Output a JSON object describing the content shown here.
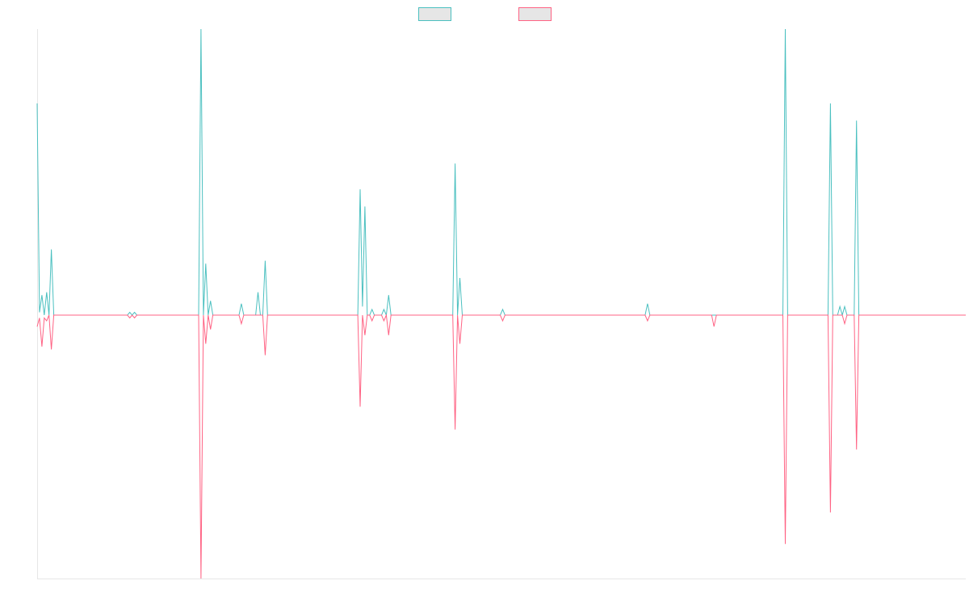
{
  "chart_data": {
    "type": "line",
    "title": "",
    "xlabel": "",
    "ylabel": "",
    "grid": false,
    "legend_position": "top-center",
    "ylim": [
      -1.0,
      1.0
    ],
    "series": [
      {
        "color": "#4bc0c0",
        "fill": "#e6e6e6",
        "values": [
          0.74,
          0.01,
          0.07,
          0.0,
          0.08,
          0.0,
          0.23,
          0.0,
          0.0,
          0.0,
          0.0,
          0.0,
          0.0,
          0.0,
          0.0,
          0.0,
          0.0,
          0.0,
          0.0,
          0.0,
          0.0,
          0.0,
          0.0,
          0.0,
          0.0,
          0.0,
          0.0,
          0.0,
          0.0,
          0.0,
          0.0,
          0.0,
          0.0,
          0.0,
          0.0,
          0.0,
          0.0,
          0.0,
          0.0,
          0.01,
          0.0,
          0.01,
          0.0,
          0.0,
          0.0,
          0.0,
          0.0,
          0.0,
          0.0,
          0.0,
          0.0,
          0.0,
          0.0,
          0.0,
          0.0,
          0.0,
          0.0,
          0.0,
          0.0,
          0.0,
          0.0,
          0.0,
          0.0,
          0.0,
          0.0,
          0.0,
          0.0,
          0.0,
          0.0,
          1.04,
          0.0,
          0.18,
          0.0,
          0.05,
          0.0,
          0.0,
          0.0,
          0.0,
          0.0,
          0.0,
          0.0,
          0.0,
          0.0,
          0.0,
          0.0,
          0.0,
          0.04,
          0.0,
          0.0,
          0.0,
          0.0,
          0.0,
          0.0,
          0.08,
          0.0,
          0.0,
          0.19,
          0.0,
          0.0,
          0.0,
          0.0,
          0.0,
          0.0,
          0.0,
          0.0,
          0.0,
          0.0,
          0.0,
          0.0,
          0.0,
          0.0,
          0.0,
          0.0,
          0.0,
          0.0,
          0.0,
          0.0,
          0.0,
          0.0,
          0.0,
          0.0,
          0.0,
          0.0,
          0.0,
          0.0,
          0.0,
          0.0,
          0.0,
          0.0,
          0.0,
          0.0,
          0.0,
          0.0,
          0.0,
          0.0,
          0.0,
          0.44,
          0.03,
          0.38,
          0.0,
          0.0,
          0.02,
          0.0,
          0.0,
          0.0,
          0.0,
          0.02,
          0.0,
          0.07,
          0.0,
          0.0,
          0.0,
          0.0,
          0.0,
          0.0,
          0.0,
          0.0,
          0.0,
          0.0,
          0.0,
          0.0,
          0.0,
          0.0,
          0.0,
          0.0,
          0.0,
          0.0,
          0.0,
          0.0,
          0.0,
          0.0,
          0.0,
          0.0,
          0.0,
          0.0,
          0.0,
          0.53,
          0.0,
          0.13,
          0.0,
          0.0,
          0.0,
          0.0,
          0.0,
          0.0,
          0.0,
          0.0,
          0.0,
          0.0,
          0.0,
          0.0,
          0.0,
          0.0,
          0.0,
          0.0,
          0.0,
          0.02,
          0.0,
          0.0,
          0.0,
          0.0,
          0.0,
          0.0,
          0.0,
          0.0,
          0.0,
          0.0,
          0.0,
          0.0,
          0.0,
          0.0,
          0.0,
          0.0,
          0.0,
          0.0,
          0.0,
          0.0,
          0.0,
          0.0,
          0.0,
          0.0,
          0.0,
          0.0,
          0.0,
          0.0,
          0.0,
          0.0,
          0.0,
          0.0,
          0.0,
          0.0,
          0.0,
          0.0,
          0.0,
          0.0,
          0.0,
          0.0,
          0.0,
          0.0,
          0.0,
          0.0,
          0.0,
          0.0,
          0.0,
          0.0,
          0.0,
          0.0,
          0.0,
          0.0,
          0.0,
          0.0,
          0.0,
          0.0,
          0.0,
          0.0,
          0.0,
          0.0,
          0.04,
          0.0,
          0.0,
          0.0,
          0.0,
          0.0,
          0.0,
          0.0,
          0.0,
          0.0,
          0.0,
          0.0,
          0.0,
          0.0,
          0.0,
          0.0,
          0.0,
          0.0,
          0.0,
          0.0,
          0.0,
          0.0,
          0.0,
          0.0,
          0.0,
          0.0,
          0.0,
          0.0,
          0.0,
          0.0,
          0.0,
          0.0,
          0.0,
          0.0,
          0.0,
          0.0,
          0.0,
          0.0,
          0.0,
          0.0,
          0.0,
          0.0,
          0.0,
          0.0,
          0.0,
          0.0,
          0.0,
          0.0,
          0.0,
          0.0,
          0.0,
          0.0,
          0.0,
          0.0,
          0.0,
          0.0,
          0.0,
          0.0,
          1.0,
          0.0,
          0.0,
          0.0,
          0.0,
          0.0,
          0.0,
          0.0,
          0.0,
          0.0,
          0.0,
          0.0,
          0.0,
          0.0,
          0.0,
          0.0,
          0.0,
          0.0,
          0.0,
          0.74,
          0.0,
          0.0,
          0.0,
          0.03,
          0.0,
          0.03,
          0.0,
          0.0,
          0.0,
          0.0,
          0.68,
          0.0,
          0.0,
          0.0,
          0.0,
          0.0,
          0.0,
          0.0,
          0.0,
          0.0,
          0.0,
          0.0,
          0.0,
          0.0,
          0.0,
          0.0,
          0.0,
          0.0,
          0.0,
          0.0,
          0.0,
          0.0,
          0.0,
          0.0,
          0.0,
          0.0,
          0.0,
          0.0,
          0.0,
          0.0,
          0.0,
          0.0,
          0.0,
          0.0,
          0.0,
          0.0,
          0.0,
          0.0,
          0.0,
          0.0,
          0.0,
          0.0,
          0.0,
          0.0,
          0.0,
          0.0,
          0.0
        ]
      },
      {
        "color": "#ff6384",
        "fill": "#e6e6e6",
        "values": [
          -0.04,
          -0.01,
          -0.11,
          -0.01,
          -0.02,
          0.0,
          -0.12,
          0.0,
          0.0,
          0.0,
          0.0,
          0.0,
          0.0,
          0.0,
          0.0,
          0.0,
          0.0,
          0.0,
          0.0,
          0.0,
          0.0,
          0.0,
          0.0,
          0.0,
          0.0,
          0.0,
          0.0,
          0.0,
          0.0,
          0.0,
          0.0,
          0.0,
          0.0,
          0.0,
          0.0,
          0.0,
          0.0,
          0.0,
          0.0,
          -0.01,
          0.0,
          -0.01,
          0.0,
          0.0,
          0.0,
          0.0,
          0.0,
          0.0,
          0.0,
          0.0,
          0.0,
          0.0,
          0.0,
          0.0,
          0.0,
          0.0,
          0.0,
          0.0,
          0.0,
          0.0,
          0.0,
          0.0,
          0.0,
          0.0,
          0.0,
          0.0,
          0.0,
          0.0,
          0.0,
          -0.96,
          0.0,
          -0.1,
          0.0,
          -0.05,
          0.0,
          0.0,
          0.0,
          0.0,
          0.0,
          0.0,
          0.0,
          0.0,
          0.0,
          0.0,
          0.0,
          0.0,
          -0.03,
          0.0,
          0.0,
          0.0,
          0.0,
          0.0,
          0.0,
          0.0,
          0.0,
          0.0,
          -0.14,
          0.0,
          0.0,
          0.0,
          0.0,
          0.0,
          0.0,
          0.0,
          0.0,
          0.0,
          0.0,
          0.0,
          0.0,
          0.0,
          0.0,
          0.0,
          0.0,
          0.0,
          0.0,
          0.0,
          0.0,
          0.0,
          0.0,
          0.0,
          0.0,
          0.0,
          0.0,
          0.0,
          0.0,
          0.0,
          0.0,
          0.0,
          0.0,
          0.0,
          0.0,
          0.0,
          0.0,
          0.0,
          0.0,
          0.0,
          -0.32,
          0.0,
          -0.07,
          0.0,
          0.0,
          -0.02,
          0.0,
          0.0,
          0.0,
          0.0,
          -0.02,
          0.0,
          -0.07,
          0.0,
          0.0,
          0.0,
          0.0,
          0.0,
          0.0,
          0.0,
          0.0,
          0.0,
          0.0,
          0.0,
          0.0,
          0.0,
          0.0,
          0.0,
          0.0,
          0.0,
          0.0,
          0.0,
          0.0,
          0.0,
          0.0,
          0.0,
          0.0,
          0.0,
          0.0,
          0.0,
          -0.4,
          0.0,
          -0.1,
          0.0,
          0.0,
          0.0,
          0.0,
          0.0,
          0.0,
          0.0,
          0.0,
          0.0,
          0.0,
          0.0,
          0.0,
          0.0,
          0.0,
          0.0,
          0.0,
          0.0,
          -0.02,
          0.0,
          0.0,
          0.0,
          0.0,
          0.0,
          0.0,
          0.0,
          0.0,
          0.0,
          0.0,
          0.0,
          0.0,
          0.0,
          0.0,
          0.0,
          0.0,
          0.0,
          0.0,
          0.0,
          0.0,
          0.0,
          0.0,
          0.0,
          0.0,
          0.0,
          0.0,
          0.0,
          0.0,
          0.0,
          0.0,
          0.0,
          0.0,
          0.0,
          0.0,
          0.0,
          0.0,
          0.0,
          0.0,
          0.0,
          0.0,
          0.0,
          0.0,
          0.0,
          0.0,
          0.0,
          0.0,
          0.0,
          0.0,
          0.0,
          0.0,
          0.0,
          0.0,
          0.0,
          0.0,
          0.0,
          0.0,
          0.0,
          0.0,
          0.0,
          0.0,
          -0.02,
          0.0,
          0.0,
          0.0,
          0.0,
          0.0,
          0.0,
          0.0,
          0.0,
          0.0,
          0.0,
          0.0,
          0.0,
          0.0,
          0.0,
          0.0,
          0.0,
          0.0,
          0.0,
          0.0,
          0.0,
          0.0,
          0.0,
          0.0,
          0.0,
          0.0,
          0.0,
          0.0,
          -0.04,
          0.0,
          0.0,
          0.0,
          0.0,
          0.0,
          0.0,
          0.0,
          0.0,
          0.0,
          0.0,
          0.0,
          0.0,
          0.0,
          0.0,
          0.0,
          0.0,
          0.0,
          0.0,
          0.0,
          0.0,
          0.0,
          0.0,
          0.0,
          0.0,
          0.0,
          0.0,
          0.0,
          0.0,
          0.0,
          -0.8,
          0.0,
          0.0,
          0.0,
          0.0,
          0.0,
          0.0,
          0.0,
          0.0,
          0.0,
          0.0,
          0.0,
          0.0,
          0.0,
          0.0,
          0.0,
          0.0,
          0.0,
          0.0,
          -0.69,
          0.0,
          0.0,
          0.0,
          0.0,
          0.0,
          -0.03,
          0.0,
          0.0,
          0.0,
          0.0,
          -0.47,
          0.0,
          0.0,
          0.0,
          0.0,
          0.0,
          0.0,
          0.0,
          0.0,
          0.0,
          0.0,
          0.0,
          0.0,
          0.0,
          0.0,
          0.0,
          0.0,
          0.0,
          0.0,
          0.0,
          0.0,
          0.0,
          0.0,
          0.0,
          0.0,
          0.0,
          0.0,
          0.0,
          0.0,
          0.0,
          0.0,
          0.0,
          0.0,
          0.0,
          0.0,
          0.0,
          0.0,
          0.0,
          0.0,
          0.0,
          0.0,
          0.0,
          0.0,
          0.0,
          0.0,
          0.0,
          0.0
        ]
      }
    ]
  }
}
